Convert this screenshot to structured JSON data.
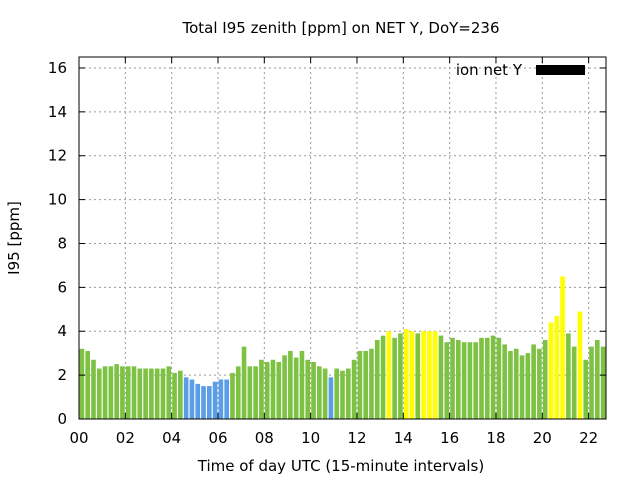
{
  "chart_data": {
    "type": "bar",
    "title": "Total I95 zenith [ppm] on NET Y, DoY=236",
    "xlabel": "Time of day UTC (15-minute intervals)",
    "ylabel": "I95 [ppm]",
    "legend": {
      "label": "ion net Y",
      "placement": "top-right",
      "swatch_color": "#000000"
    },
    "grid": true,
    "xlim": [
      0,
      22.75
    ],
    "ylim": [
      0,
      16.5
    ],
    "x_ticks": [
      0,
      2,
      4,
      6,
      8,
      10,
      12,
      14,
      16,
      18,
      20,
      22
    ],
    "x_tick_labels": [
      "00",
      "02",
      "04",
      "06",
      "08",
      "10",
      "12",
      "14",
      "16",
      "18",
      "20",
      "22"
    ],
    "y_ticks": [
      0,
      2,
      4,
      6,
      8,
      10,
      12,
      14,
      16
    ],
    "y_tick_labels": [
      "0",
      "2",
      "4",
      "6",
      "8",
      "10",
      "12",
      "14",
      "16"
    ],
    "bar_width_hours": 0.2,
    "colors": {
      "green": "#7dc242",
      "blue": "#5a9ee8",
      "yellow": "#ffff00"
    },
    "bars": [
      {
        "x": 0.125,
        "y": 3.2,
        "c": "green"
      },
      {
        "x": 0.375,
        "y": 3.1,
        "c": "green"
      },
      {
        "x": 0.625,
        "y": 2.7,
        "c": "green"
      },
      {
        "x": 0.875,
        "y": 2.3,
        "c": "green"
      },
      {
        "x": 1.125,
        "y": 2.4,
        "c": "green"
      },
      {
        "x": 1.375,
        "y": 2.4,
        "c": "green"
      },
      {
        "x": 1.625,
        "y": 2.5,
        "c": "green"
      },
      {
        "x": 1.875,
        "y": 2.4,
        "c": "green"
      },
      {
        "x": 2.125,
        "y": 2.4,
        "c": "green"
      },
      {
        "x": 2.375,
        "y": 2.4,
        "c": "green"
      },
      {
        "x": 2.625,
        "y": 2.3,
        "c": "green"
      },
      {
        "x": 2.875,
        "y": 2.3,
        "c": "green"
      },
      {
        "x": 3.125,
        "y": 2.3,
        "c": "green"
      },
      {
        "x": 3.375,
        "y": 2.3,
        "c": "green"
      },
      {
        "x": 3.625,
        "y": 2.3,
        "c": "green"
      },
      {
        "x": 3.875,
        "y": 2.4,
        "c": "green"
      },
      {
        "x": 4.125,
        "y": 2.1,
        "c": "green"
      },
      {
        "x": 4.375,
        "y": 2.2,
        "c": "green"
      },
      {
        "x": 4.625,
        "y": 1.9,
        "c": "blue"
      },
      {
        "x": 4.875,
        "y": 1.8,
        "c": "blue"
      },
      {
        "x": 5.125,
        "y": 1.6,
        "c": "blue"
      },
      {
        "x": 5.375,
        "y": 1.5,
        "c": "blue"
      },
      {
        "x": 5.625,
        "y": 1.5,
        "c": "blue"
      },
      {
        "x": 5.875,
        "y": 1.7,
        "c": "blue"
      },
      {
        "x": 6.125,
        "y": 1.8,
        "c": "blue"
      },
      {
        "x": 6.375,
        "y": 1.8,
        "c": "blue"
      },
      {
        "x": 6.625,
        "y": 2.1,
        "c": "green"
      },
      {
        "x": 6.875,
        "y": 2.4,
        "c": "green"
      },
      {
        "x": 7.125,
        "y": 3.3,
        "c": "green"
      },
      {
        "x": 7.375,
        "y": 2.4,
        "c": "green"
      },
      {
        "x": 7.625,
        "y": 2.4,
        "c": "green"
      },
      {
        "x": 7.875,
        "y": 2.7,
        "c": "green"
      },
      {
        "x": 8.125,
        "y": 2.6,
        "c": "green"
      },
      {
        "x": 8.375,
        "y": 2.7,
        "c": "green"
      },
      {
        "x": 8.625,
        "y": 2.6,
        "c": "green"
      },
      {
        "x": 8.875,
        "y": 2.9,
        "c": "green"
      },
      {
        "x": 9.125,
        "y": 3.1,
        "c": "green"
      },
      {
        "x": 9.375,
        "y": 2.8,
        "c": "green"
      },
      {
        "x": 9.625,
        "y": 3.1,
        "c": "green"
      },
      {
        "x": 9.875,
        "y": 2.7,
        "c": "green"
      },
      {
        "x": 10.125,
        "y": 2.6,
        "c": "green"
      },
      {
        "x": 10.375,
        "y": 2.4,
        "c": "green"
      },
      {
        "x": 10.625,
        "y": 2.3,
        "c": "green"
      },
      {
        "x": 10.875,
        "y": 1.9,
        "c": "blue"
      },
      {
        "x": 11.125,
        "y": 2.3,
        "c": "green"
      },
      {
        "x": 11.375,
        "y": 2.2,
        "c": "green"
      },
      {
        "x": 11.625,
        "y": 2.3,
        "c": "green"
      },
      {
        "x": 11.875,
        "y": 2.7,
        "c": "green"
      },
      {
        "x": 12.125,
        "y": 3.1,
        "c": "green"
      },
      {
        "x": 12.375,
        "y": 3.1,
        "c": "green"
      },
      {
        "x": 12.625,
        "y": 3.2,
        "c": "green"
      },
      {
        "x": 12.875,
        "y": 3.6,
        "c": "green"
      },
      {
        "x": 13.125,
        "y": 3.8,
        "c": "green"
      },
      {
        "x": 13.375,
        "y": 4.0,
        "c": "yellow"
      },
      {
        "x": 13.625,
        "y": 3.7,
        "c": "green"
      },
      {
        "x": 13.875,
        "y": 3.9,
        "c": "green"
      },
      {
        "x": 14.125,
        "y": 4.1,
        "c": "yellow"
      },
      {
        "x": 14.375,
        "y": 4.0,
        "c": "yellow"
      },
      {
        "x": 14.625,
        "y": 3.9,
        "c": "green"
      },
      {
        "x": 14.875,
        "y": 4.0,
        "c": "yellow"
      },
      {
        "x": 15.125,
        "y": 4.0,
        "c": "yellow"
      },
      {
        "x": 15.375,
        "y": 4.0,
        "c": "yellow"
      },
      {
        "x": 15.625,
        "y": 3.8,
        "c": "green"
      },
      {
        "x": 15.875,
        "y": 3.5,
        "c": "green"
      },
      {
        "x": 16.125,
        "y": 3.7,
        "c": "green"
      },
      {
        "x": 16.375,
        "y": 3.6,
        "c": "green"
      },
      {
        "x": 16.625,
        "y": 3.5,
        "c": "green"
      },
      {
        "x": 16.875,
        "y": 3.5,
        "c": "green"
      },
      {
        "x": 17.125,
        "y": 3.5,
        "c": "green"
      },
      {
        "x": 17.375,
        "y": 3.7,
        "c": "green"
      },
      {
        "x": 17.625,
        "y": 3.7,
        "c": "green"
      },
      {
        "x": 17.875,
        "y": 3.8,
        "c": "green"
      },
      {
        "x": 18.125,
        "y": 3.7,
        "c": "green"
      },
      {
        "x": 18.375,
        "y": 3.4,
        "c": "green"
      },
      {
        "x": 18.625,
        "y": 3.1,
        "c": "green"
      },
      {
        "x": 18.875,
        "y": 3.2,
        "c": "green"
      },
      {
        "x": 19.125,
        "y": 2.9,
        "c": "green"
      },
      {
        "x": 19.375,
        "y": 3.0,
        "c": "green"
      },
      {
        "x": 19.625,
        "y": 3.4,
        "c": "green"
      },
      {
        "x": 19.875,
        "y": 3.2,
        "c": "green"
      },
      {
        "x": 20.125,
        "y": 3.6,
        "c": "green"
      },
      {
        "x": 20.375,
        "y": 4.4,
        "c": "yellow"
      },
      {
        "x": 20.625,
        "y": 4.7,
        "c": "yellow"
      },
      {
        "x": 20.875,
        "y": 6.5,
        "c": "yellow"
      },
      {
        "x": 21.125,
        "y": 3.9,
        "c": "green"
      },
      {
        "x": 21.375,
        "y": 3.3,
        "c": "green"
      },
      {
        "x": 21.625,
        "y": 4.9,
        "c": "yellow"
      },
      {
        "x": 21.875,
        "y": 2.7,
        "c": "green"
      },
      {
        "x": 22.125,
        "y": 3.3,
        "c": "green"
      },
      {
        "x": 22.375,
        "y": 3.6,
        "c": "green"
      },
      {
        "x": 22.625,
        "y": 3.3,
        "c": "green"
      }
    ]
  }
}
